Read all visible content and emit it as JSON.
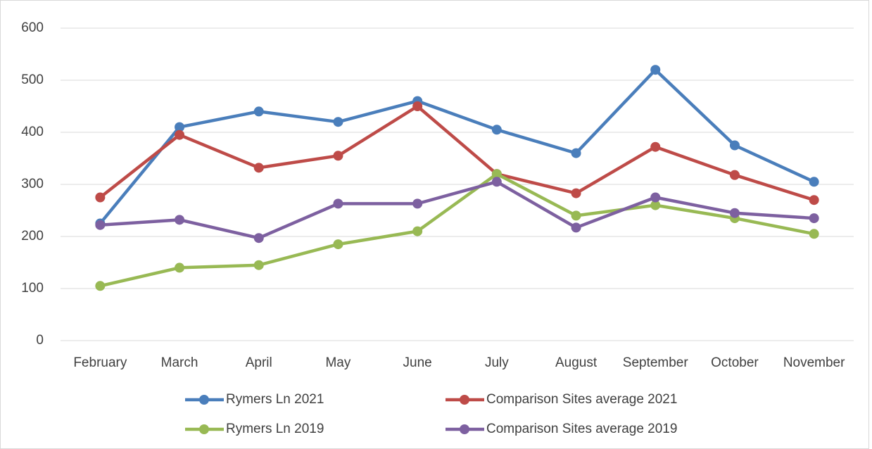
{
  "chart_data": {
    "type": "line",
    "categories": [
      "February",
      "March",
      "April",
      "May",
      "June",
      "July",
      "August",
      "September",
      "October",
      "November"
    ],
    "series": [
      {
        "name": "Rymers Ln 2021",
        "color": "#4a7ebb",
        "values": [
          225,
          410,
          440,
          420,
          460,
          405,
          360,
          520,
          375,
          305
        ]
      },
      {
        "name": "Comparison Sites average 2021",
        "color": "#be4b48",
        "values": [
          275,
          395,
          332,
          355,
          450,
          320,
          283,
          372,
          318,
          270
        ]
      },
      {
        "name": "Rymers Ln 2019",
        "color": "#98b954",
        "values": [
          105,
          140,
          145,
          185,
          210,
          320,
          240,
          260,
          235,
          205
        ]
      },
      {
        "name": "Comparison Sites average 2019",
        "color": "#7d60a0",
        "values": [
          222,
          232,
          197,
          263,
          263,
          305,
          217,
          275,
          245,
          235
        ]
      }
    ],
    "ylim": [
      0,
      600
    ],
    "yticks": [
      0,
      100,
      200,
      300,
      400,
      500,
      600
    ],
    "grid": true
  }
}
